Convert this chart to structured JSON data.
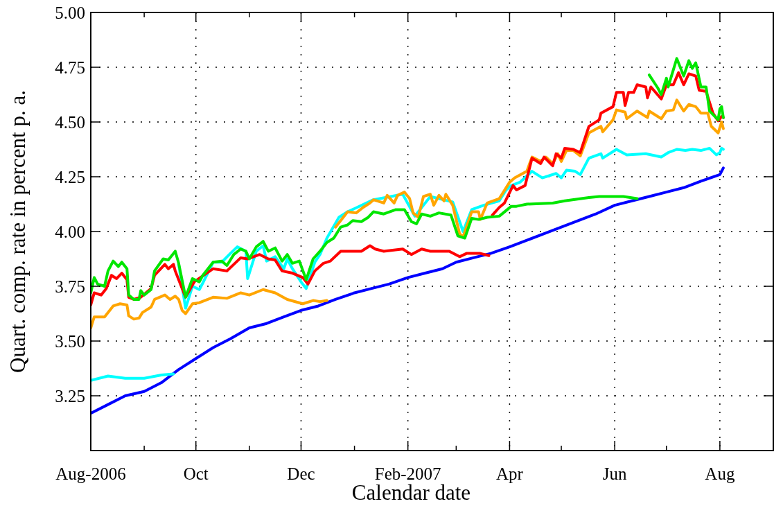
{
  "chart_data": {
    "type": "line",
    "xlabel": "Calendar date",
    "ylabel": "Quart. comp. rate in percent p. a.",
    "xlim": [
      "2006-08-01",
      "2007-09-01"
    ],
    "xticks": [
      {
        "value": "2006-08-01",
        "label": "Aug-2006"
      },
      {
        "value": "2006-09-01",
        "label": null
      },
      {
        "value": "2006-10-01",
        "label": "Oct"
      },
      {
        "value": "2006-11-01",
        "label": null
      },
      {
        "value": "2006-12-01",
        "label": "Dec"
      },
      {
        "value": "2007-01-01",
        "label": null
      },
      {
        "value": "2007-02-01",
        "label": "Feb-2007"
      },
      {
        "value": "2007-03-01",
        "label": null
      },
      {
        "value": "2007-04-01",
        "label": "Apr"
      },
      {
        "value": "2007-05-01",
        "label": null
      },
      {
        "value": "2007-06-01",
        "label": "Jun"
      },
      {
        "value": "2007-07-01",
        "label": null
      },
      {
        "value": "2007-08-01",
        "label": "Aug"
      }
    ],
    "ylim": [
      3.0,
      5.0
    ],
    "yticks": [
      {
        "value": 3.25,
        "label": "3.25"
      },
      {
        "value": 3.5,
        "label": "3.50"
      },
      {
        "value": 3.75,
        "label": "3.75"
      },
      {
        "value": 4.0,
        "label": "4.00"
      },
      {
        "value": 4.25,
        "label": "4.25"
      },
      {
        "value": 4.5,
        "label": "4.50"
      },
      {
        "value": 4.75,
        "label": "4.75"
      },
      {
        "value": 5.0,
        "label": "5.00"
      }
    ],
    "grid": true,
    "marker": "none",
    "line_style": "solid",
    "series": [
      {
        "color": "#0000ff",
        "x": [
          "2006-08-01",
          "2006-08-11",
          "2006-08-21",
          "2006-09-01",
          "2006-09-11",
          "2006-09-21",
          "2006-10-01",
          "2006-10-11",
          "2006-10-21",
          "2006-11-01",
          "2006-11-11",
          "2006-11-21",
          "2006-12-01",
          "2006-12-11",
          "2006-12-21",
          "2007-01-01",
          "2007-01-11",
          "2007-01-21",
          "2007-02-01",
          "2007-02-11",
          "2007-02-21",
          "2007-03-01",
          "2007-03-11",
          "2007-03-21",
          "2007-04-01",
          "2007-04-11",
          "2007-04-21",
          "2007-05-01",
          "2007-05-11",
          "2007-05-21",
          "2007-06-01",
          "2007-06-11",
          "2007-06-21",
          "2007-07-01",
          "2007-07-11",
          "2007-07-21",
          "2007-08-01",
          "2007-08-03"
        ],
        "values": [
          3.17,
          3.21,
          3.25,
          3.27,
          3.31,
          3.37,
          3.42,
          3.47,
          3.51,
          3.56,
          3.58,
          3.61,
          3.64,
          3.66,
          3.69,
          3.72,
          3.74,
          3.76,
          3.79,
          3.81,
          3.83,
          3.86,
          3.88,
          3.9,
          3.93,
          3.96,
          3.99,
          4.02,
          4.05,
          4.08,
          4.12,
          4.14,
          4.16,
          4.18,
          4.2,
          4.23,
          4.26,
          4.29
        ]
      },
      {
        "color": "#00ffff",
        "x": [
          "2006-08-01",
          "2006-08-11",
          "2006-08-21",
          "2006-09-01",
          "2006-09-11",
          "2006-09-18",
          "2006-09-19",
          "2006-09-21",
          "2006-09-25",
          "2006-09-29",
          "2006-10-03",
          "2006-10-05",
          "2006-10-11",
          "2006-10-16",
          "2006-10-21",
          "2006-10-25",
          "2006-10-30",
          "2006-10-31",
          "2006-11-05",
          "2006-11-09",
          "2006-11-11",
          "2006-11-16",
          "2006-11-21",
          "2006-11-23",
          "2006-11-26",
          "2006-12-01",
          "2006-12-04",
          "2006-12-09",
          "2006-12-12",
          "2006-12-16",
          "2006-12-23",
          "2006-12-28",
          "2007-01-12",
          "2007-01-29",
          "2007-02-05",
          "2007-02-14",
          "2007-02-27",
          "2007-03-05",
          "2007-03-10",
          "2007-03-17",
          "2007-03-26",
          "2007-03-30",
          "2007-04-02",
          "2007-04-07",
          "2007-04-14",
          "2007-04-20",
          "2007-04-28",
          "2007-05-01",
          "2007-05-04",
          "2007-05-09",
          "2007-05-12",
          "2007-05-17",
          "2007-05-24",
          "2007-05-25",
          "2007-06-02",
          "2007-06-08",
          "2007-06-19",
          "2007-06-28",
          "2007-07-02",
          "2007-07-07",
          "2007-07-12",
          "2007-07-16",
          "2007-07-21",
          "2007-07-26",
          "2007-07-30",
          "2007-08-01",
          "2007-08-02",
          "2007-08-03"
        ],
        "values": [
          3.32,
          3.34,
          3.33,
          3.33,
          3.345,
          3.35,
          null,
          3.85,
          3.65,
          3.75,
          3.735,
          3.765,
          3.86,
          3.86,
          3.9,
          3.93,
          3.91,
          3.785,
          3.91,
          3.935,
          3.865,
          3.885,
          3.83,
          3.875,
          3.83,
          3.77,
          3.74,
          3.86,
          3.895,
          3.97,
          4.065,
          4.09,
          4.145,
          4.17,
          4.07,
          4.16,
          4.135,
          4.0,
          4.1,
          4.12,
          4.14,
          4.19,
          4.21,
          4.225,
          4.275,
          4.245,
          4.265,
          4.245,
          4.28,
          4.275,
          4.26,
          4.335,
          4.355,
          4.335,
          4.375,
          4.35,
          4.355,
          4.34,
          4.36,
          4.375,
          4.37,
          4.375,
          4.37,
          4.38,
          4.35,
          4.36,
          4.38,
          4.375
        ]
      },
      {
        "color": "#ffa500",
        "x": [
          "2006-08-01",
          "2006-08-03",
          "2006-08-09",
          "2006-08-14",
          "2006-08-18",
          "2006-08-22",
          "2006-08-23",
          "2006-08-26",
          "2006-08-29",
          "2006-08-31",
          "2006-09-05",
          "2006-09-07",
          "2006-09-13",
          "2006-09-16",
          "2006-09-19",
          "2006-09-21",
          "2006-09-23",
          "2006-09-25",
          "2006-09-29",
          "2006-10-03",
          "2006-10-11",
          "2006-10-19",
          "2006-10-27",
          "2006-11-01",
          "2006-11-09",
          "2006-11-16",
          "2006-11-23",
          "2006-12-02",
          "2006-12-08",
          "2006-12-12",
          "2006-12-16",
          "2006-12-18",
          "2006-12-21",
          "2006-12-28",
          "2007-01-02",
          "2007-01-06",
          "2007-01-10",
          "2007-01-12",
          "2007-01-18",
          "2007-01-20",
          "2007-01-24",
          "2007-01-26",
          "2007-01-30",
          "2007-02-02",
          "2007-02-04",
          "2007-02-07",
          "2007-02-10",
          "2007-02-14",
          "2007-02-16",
          "2007-02-19",
          "2007-02-22",
          "2007-02-23",
          "2007-02-27",
          "2007-03-03",
          "2007-03-05",
          "2007-03-10",
          "2007-03-14",
          "2007-03-15",
          "2007-03-19",
          "2007-03-26",
          "2007-04-01",
          "2007-04-04",
          "2007-04-11",
          "2007-04-14",
          "2007-04-19",
          "2007-04-22",
          "2007-04-26",
          "2007-04-29",
          "2007-05-01",
          "2007-05-04",
          "2007-05-08",
          "2007-05-12",
          "2007-05-17",
          "2007-05-24",
          "2007-05-25",
          "2007-05-31",
          "2007-06-02",
          "2007-06-07",
          "2007-06-08",
          "2007-06-14",
          "2007-06-20",
          "2007-06-21",
          "2007-06-28",
          "2007-07-01",
          "2007-07-05",
          "2007-07-07",
          "2007-07-11",
          "2007-07-14",
          "2007-07-18",
          "2007-07-21",
          "2007-07-25",
          "2007-07-27",
          "2007-07-31",
          "2007-08-02",
          "2007-08-03"
        ],
        "values": [
          3.56,
          3.61,
          3.61,
          3.66,
          3.67,
          3.665,
          3.615,
          3.6,
          3.605,
          3.63,
          3.655,
          3.69,
          3.71,
          3.69,
          3.705,
          3.69,
          3.64,
          3.625,
          3.67,
          3.675,
          3.7,
          3.695,
          3.72,
          3.71,
          3.735,
          3.72,
          3.69,
          3.67,
          3.685,
          3.68,
          3.685,
          null,
          4.02,
          4.09,
          4.085,
          4.11,
          4.13,
          4.145,
          4.13,
          4.165,
          4.13,
          4.165,
          4.18,
          4.15,
          4.085,
          4.065,
          4.16,
          4.17,
          4.12,
          4.165,
          4.14,
          4.17,
          4.12,
          3.99,
          3.975,
          4.09,
          4.09,
          4.055,
          4.13,
          4.15,
          4.225,
          4.245,
          4.275,
          4.34,
          4.32,
          4.34,
          4.31,
          4.355,
          4.32,
          4.37,
          4.37,
          4.345,
          4.45,
          4.48,
          4.455,
          4.51,
          4.555,
          4.545,
          4.515,
          4.55,
          4.52,
          4.55,
          4.515,
          4.55,
          4.555,
          4.6,
          4.55,
          4.58,
          4.57,
          4.54,
          4.54,
          4.48,
          4.45,
          4.5,
          4.47
        ]
      },
      {
        "color": "#ff0000",
        "x": [
          "2006-08-01",
          "2006-08-03",
          "2006-08-07",
          "2006-08-10",
          "2006-08-13",
          "2006-08-16",
          "2006-08-19",
          "2006-08-22",
          "2006-08-23",
          "2006-08-26",
          "2006-08-30",
          "2006-09-02",
          "2006-09-05",
          "2006-09-07",
          "2006-09-13",
          "2006-09-15",
          "2006-09-18",
          "2006-09-19",
          "2006-09-25",
          "2006-09-30",
          "2006-10-11",
          "2006-10-19",
          "2006-10-27",
          "2006-10-31",
          "2006-11-07",
          "2006-11-12",
          "2006-11-16",
          "2006-11-20",
          "2006-11-26",
          "2006-12-02",
          "2006-12-05",
          "2006-12-09",
          "2006-12-14",
          "2006-12-18",
          "2006-12-24",
          "2006-12-29",
          "2007-01-05",
          "2007-01-10",
          "2007-01-13",
          "2007-01-18",
          "2007-01-29",
          "2007-02-03",
          "2007-02-09",
          "2007-02-14",
          "2007-02-25",
          "2007-03-03",
          "2007-03-07",
          "2007-03-15",
          "2007-03-20",
          "2007-03-21",
          "2007-03-22",
          "2007-03-26",
          "2007-03-29",
          "2007-04-03",
          "2007-04-05",
          "2007-04-10",
          "2007-04-14",
          "2007-04-19",
          "2007-04-21",
          "2007-04-26",
          "2007-04-28",
          "2007-05-01",
          "2007-05-03",
          "2007-05-08",
          "2007-05-12",
          "2007-05-17",
          "2007-05-23",
          "2007-05-24",
          "2007-05-31",
          "2007-06-02",
          "2007-06-06",
          "2007-06-07",
          "2007-06-09",
          "2007-06-12",
          "2007-06-14",
          "2007-06-19",
          "2007-06-20",
          "2007-06-22",
          "2007-06-28",
          "2007-07-01",
          "2007-07-05",
          "2007-07-08",
          "2007-07-11",
          "2007-07-14",
          "2007-07-18",
          "2007-07-20",
          "2007-07-24",
          "2007-07-28",
          "2007-07-31",
          "2007-08-02",
          "2007-08-03"
        ],
        "values": [
          3.665,
          3.72,
          3.71,
          3.74,
          3.8,
          3.785,
          3.81,
          3.78,
          3.7,
          3.69,
          3.7,
          3.72,
          3.74,
          3.8,
          3.85,
          3.83,
          3.85,
          3.82,
          3.7,
          3.77,
          3.83,
          3.82,
          3.88,
          3.875,
          3.895,
          3.875,
          3.87,
          3.82,
          3.81,
          3.79,
          3.76,
          3.82,
          3.855,
          3.865,
          3.91,
          3.91,
          3.91,
          3.935,
          3.92,
          3.91,
          3.92,
          3.895,
          3.92,
          3.91,
          3.91,
          3.885,
          3.9,
          3.9,
          3.89,
          null,
          4.075,
          4.11,
          4.13,
          4.21,
          4.19,
          4.21,
          4.335,
          4.31,
          4.34,
          4.3,
          4.355,
          4.335,
          4.38,
          4.375,
          4.36,
          4.48,
          4.51,
          4.54,
          4.57,
          4.635,
          4.635,
          4.575,
          4.635,
          4.635,
          4.67,
          4.66,
          4.61,
          4.66,
          4.605,
          4.67,
          4.67,
          4.725,
          4.67,
          4.72,
          4.71,
          4.645,
          4.64,
          4.54,
          4.505,
          4.525,
          4.52
        ]
      },
      {
        "color": "#00e600",
        "x": [
          "2006-08-01",
          "2006-08-03",
          "2006-08-05",
          "2006-08-09",
          "2006-08-11",
          "2006-08-14",
          "2006-08-17",
          "2006-08-19",
          "2006-08-22",
          "2006-08-23",
          "2006-08-26",
          "2006-08-29",
          "2006-08-30",
          "2006-09-01",
          "2006-09-05",
          "2006-09-07",
          "2006-09-12",
          "2006-09-15",
          "2006-09-19",
          "2006-09-21",
          "2006-09-25",
          "2006-09-29",
          "2006-10-03",
          "2006-10-05",
          "2006-10-11",
          "2006-10-16",
          "2006-10-19",
          "2006-10-23",
          "2006-10-27",
          "2006-10-30",
          "2006-11-01",
          "2006-11-05",
          "2006-11-09",
          "2006-11-12",
          "2006-11-16",
          "2006-11-20",
          "2006-11-23",
          "2006-11-26",
          "2006-11-30",
          "2006-12-04",
          "2006-12-08",
          "2006-12-12",
          "2006-12-16",
          "2006-12-20",
          "2006-12-24",
          "2006-12-28",
          "2006-12-31",
          "2007-01-05",
          "2007-01-09",
          "2007-01-12",
          "2007-01-18",
          "2007-01-25",
          "2007-01-30",
          "2007-02-03",
          "2007-02-06",
          "2007-02-09",
          "2007-02-14",
          "2007-02-19",
          "2007-02-26",
          "2007-03-02",
          "2007-03-06",
          "2007-03-10",
          "2007-03-14",
          "2007-03-19",
          "2007-03-26",
          "2007-04-02",
          "2007-04-05",
          "2007-04-11",
          "2007-04-26",
          "2007-05-03",
          "2007-05-17",
          "2007-05-23",
          "2007-06-06",
          "2007-06-14",
          "2007-06-17",
          "2007-06-21",
          "2007-06-26",
          "2007-06-28",
          "2007-07-01",
          "2007-07-02",
          "2007-07-07",
          "2007-07-11",
          "2007-07-14",
          "2007-07-16",
          "2007-07-18",
          "2007-07-21",
          "2007-07-24",
          "2007-07-26",
          "2007-07-31",
          "2007-08-01",
          "2007-08-02",
          "2007-08-03"
        ],
        "values": [
          3.72,
          3.79,
          3.76,
          3.75,
          3.82,
          3.865,
          3.84,
          3.86,
          3.83,
          3.71,
          3.69,
          3.69,
          3.73,
          3.71,
          3.735,
          3.82,
          3.875,
          3.87,
          3.91,
          3.855,
          3.7,
          3.785,
          3.77,
          3.8,
          3.86,
          3.865,
          3.845,
          3.895,
          3.92,
          3.91,
          3.875,
          3.93,
          3.955,
          3.91,
          3.925,
          3.865,
          3.895,
          3.855,
          3.865,
          3.78,
          3.875,
          3.91,
          3.95,
          3.97,
          4.02,
          4.03,
          4.05,
          4.045,
          4.065,
          4.09,
          4.08,
          4.1,
          4.1,
          4.045,
          4.035,
          4.08,
          4.07,
          4.085,
          4.075,
          3.98,
          3.97,
          4.06,
          4.055,
          4.065,
          4.07,
          4.115,
          4.115,
          4.125,
          4.13,
          4.14,
          4.155,
          4.16,
          4.16,
          4.15,
          null,
          4.715,
          4.655,
          4.625,
          4.7,
          4.66,
          4.79,
          4.71,
          4.78,
          4.745,
          4.77,
          4.66,
          4.66,
          4.55,
          4.51,
          4.56,
          4.57,
          4.52
        ]
      }
    ]
  }
}
